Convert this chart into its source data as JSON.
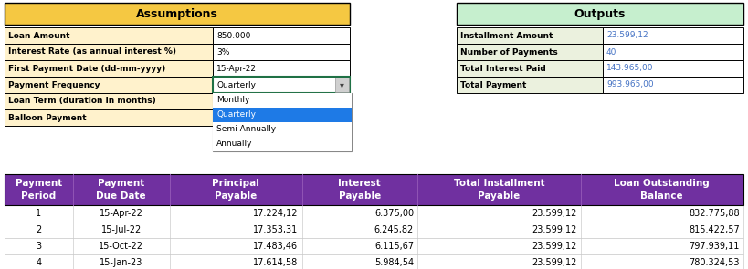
{
  "assumptions_title": "Assumptions",
  "outputs_title": "Outputs",
  "assumptions_header_bg": "#F5C842",
  "outputs_header_bg": "#C6EFCE",
  "assumptions_label_bg": "#FFF2CC",
  "assumptions_value_bg": "#FFFFFF",
  "outputs_label_bg": "#EBF1DE",
  "outputs_value_bg": "#FFFFFF",
  "outputs_value_color": "#4472C4",
  "dropdown_border_color": "#1F7145",
  "dropdown_bg": "#FFFFFF",
  "dropdown_selected_bg": "#1E7AE6",
  "dropdown_selected_text": "#FFFFFF",
  "dropdown_text_color": "#000000",
  "assumptions_rows": [
    [
      "Loan Amount",
      "850.000"
    ],
    [
      "Interest Rate (as annual interest %)",
      "3%"
    ],
    [
      "First Payment Date (dd-mm-yyyy)",
      "15-Apr-22"
    ],
    [
      "Payment Frequency",
      "Quarterly"
    ],
    [
      "Loan Term (duration in months)",
      ""
    ],
    [
      "Balloon Payment",
      ""
    ]
  ],
  "outputs_rows": [
    [
      "Installment Amount",
      "23.599,12"
    ],
    [
      "Number of Payments",
      "40"
    ],
    [
      "Total Interest Paid",
      "143.965,00"
    ],
    [
      "Total Payment",
      "993.965,00"
    ]
  ],
  "dropdown_items": [
    "Monthly",
    "Quarterly",
    "Semi Annually",
    "Annually"
  ],
  "dropdown_selected": "Quarterly",
  "table_header_bg": "#7030A0",
  "table_headers_line1": [
    "Payment",
    "Payment",
    "Principal",
    "Interest",
    "Total Installment",
    "Loan Outstanding"
  ],
  "table_headers_line2": [
    "Period",
    "Due Date",
    "Payable",
    "Payable",
    "Payable",
    "Balance"
  ],
  "table_rows": [
    [
      "1",
      "15-Apr-22",
      "17.224,12",
      "6.375,00",
      "23.599,12",
      "832.775,88"
    ],
    [
      "2",
      "15-Jul-22",
      "17.353,31",
      "6.245,82",
      "23.599,12",
      "815.422,57"
    ],
    [
      "3",
      "15-Oct-22",
      "17.483,46",
      "6.115,67",
      "23.599,12",
      "797.939,11"
    ],
    [
      "4",
      "15-Jan-23",
      "17.614,58",
      "5.984,54",
      "23.599,12",
      "780.324,53"
    ]
  ],
  "fig_width": 8.19,
  "fig_height": 2.95,
  "dpi": 100
}
